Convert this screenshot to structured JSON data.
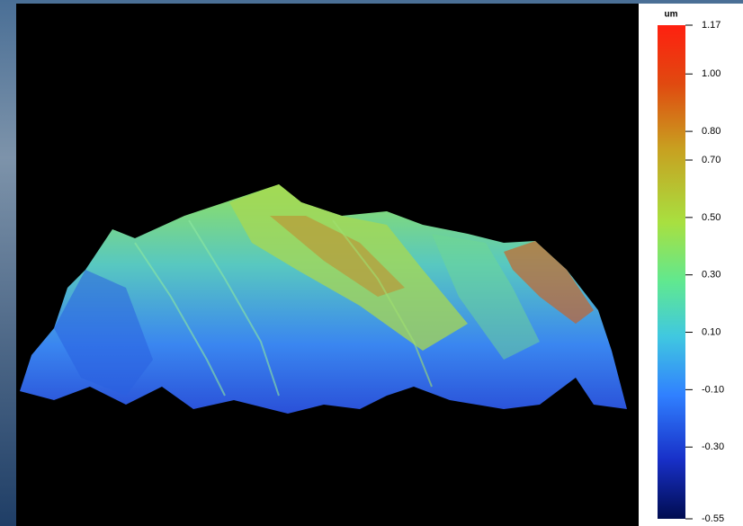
{
  "chart_data": {
    "type": "surface",
    "colorbar": {
      "label": "um",
      "lim": [
        -0.55,
        1.17
      ],
      "ticks": [
        1.17,
        {
          "value": 1,
          "label": "1.00"
        },
        {
          "value": 0.8,
          "label": "0.80"
        },
        {
          "value": 0.7,
          "label": "0.70"
        },
        {
          "value": 0.5,
          "label": "0.50"
        },
        {
          "value": 0.3,
          "label": "0.30"
        },
        {
          "value": 0.1,
          "label": "0.10"
        },
        {
          "value": -0.1,
          "label": "-0.10"
        },
        {
          "value": -0.3,
          "label": "-0.30"
        },
        -0.55
      ]
    }
  }
}
